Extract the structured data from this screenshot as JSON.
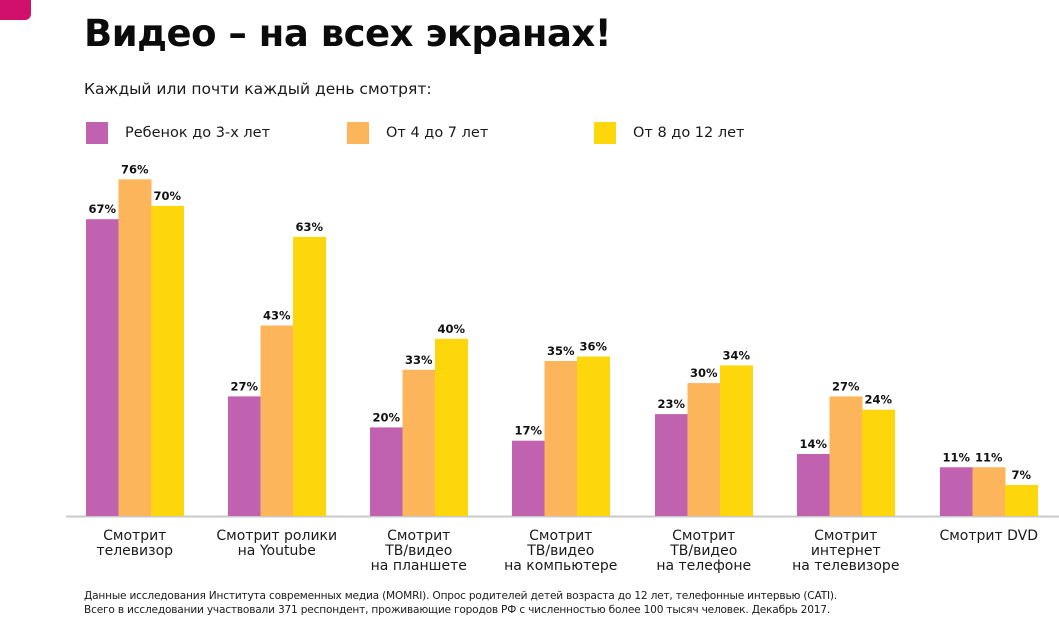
{
  "slide": {
    "title": "Видео – на всех экранах!",
    "subtitle": "Каждый или почти каждый день смотрят:",
    "accent_color": "#d0106b",
    "footnote_lines": [
      "Данные исследования Института современных медиа (MOMRI). Опрос родителей детей возраста до 12 лет, телефонные интервью (CATI).",
      "Всего в исследовании участвовали 371 респондент, проживающие городов РФ с численностью более 100 тысяч человек. Декабрь 2017."
    ]
  },
  "chart_data": {
    "type": "bar",
    "title": "Видео – на всех экранах!",
    "subtitle": "Каждый или почти каждый день смотрят:",
    "xlabel": "",
    "ylabel": "",
    "ylim": [
      0,
      80
    ],
    "unit": "%",
    "grid": false,
    "legend_position": "top-left",
    "categories": [
      [
        "Смотрит",
        "телевизор"
      ],
      [
        "Смотрит ролики",
        "на Youtube"
      ],
      [
        "Смотрит",
        "ТВ/видео",
        "на планшете"
      ],
      [
        "Смотрит",
        "ТВ/видео",
        "на компьютере"
      ],
      [
        "Смотрит",
        "ТВ/видео",
        "на телефоне"
      ],
      [
        "Смотрит",
        "интернет",
        "на телевизоре"
      ],
      [
        "Смотрит DVD"
      ]
    ],
    "series": [
      {
        "name": "Ребенок до 3-х лет",
        "color": "#c062b0",
        "values": [
          67,
          27,
          20,
          17,
          23,
          14,
          11
        ]
      },
      {
        "name": "От 4 до 7 лет",
        "color": "#fdb55c",
        "values": [
          76,
          43,
          33,
          35,
          30,
          27,
          11
        ]
      },
      {
        "name": "От 8 до 12 лет",
        "color": "#fdd70c",
        "values": [
          70,
          63,
          40,
          36,
          34,
          24,
          7
        ]
      }
    ]
  }
}
